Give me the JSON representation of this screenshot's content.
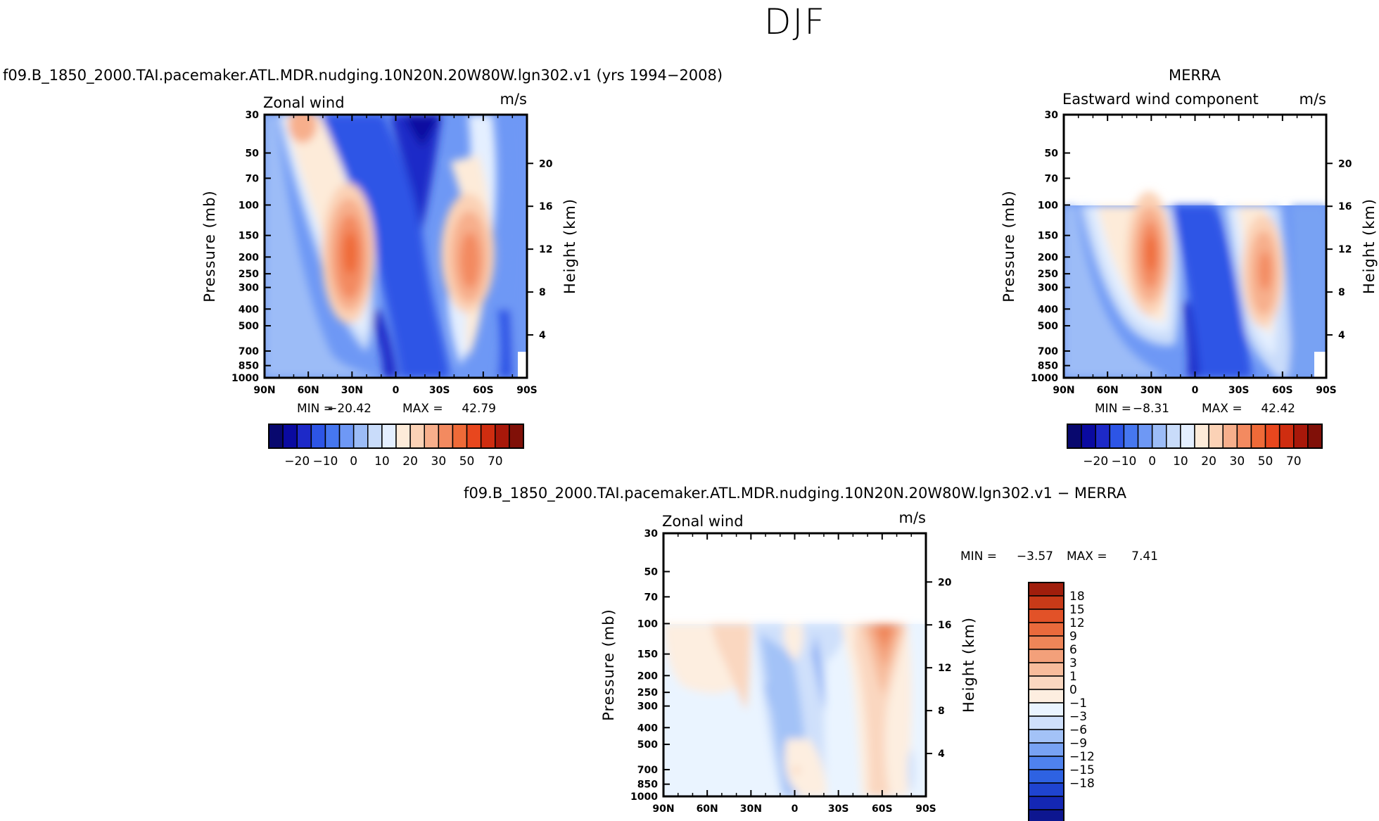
{
  "figure": {
    "title": "DJF",
    "top_caption": "f09.B_1850_2000.TAI.pacemaker.ATL.MDR.nudging.10N20N.20W80W.lgn302.v1 (yrs 1994−2008)",
    "merra_caption": "MERRA",
    "diff_caption": "f09.B_1850_2000.TAI.pacemaker.ATL.MDR.nudging.10N20N.20W80W.lgn302.v1 − MERRA"
  },
  "colors": {
    "wind_palette": [
      "#08086e",
      "#0a0aa0",
      "#1d29c8",
      "#2d55e6",
      "#4677f0",
      "#6e98f5",
      "#9cbcf7",
      "#c9dcfa",
      "#e4efff",
      "#fdebd9",
      "#fbd2b6",
      "#f7af8c",
      "#f38a60",
      "#ef6a38",
      "#e8471e",
      "#cf2d10",
      "#a8180a",
      "#801008"
    ],
    "diff_palette": [
      "#0d1690",
      "#1427b4",
      "#1f44d0",
      "#2e62e2",
      "#4f82ee",
      "#78a2f3",
      "#a3c2f7",
      "#cfe0fb",
      "#eaf4ff",
      "#fdeee0",
      "#fad7c0",
      "#f7bc9c",
      "#f3a07a",
      "#ef8558",
      "#ea6a3c",
      "#e25228",
      "#c83a18",
      "#a01e0c"
    ]
  },
  "axes": {
    "xtick_labels": [
      "90N",
      "60N",
      "30N",
      "0",
      "30S",
      "60S",
      "90S"
    ],
    "pressure_ticks": [
      "30",
      "50",
      "70",
      "100",
      "150",
      "200",
      "250",
      "300",
      "400",
      "500",
      "700",
      "850",
      "1000"
    ],
    "height_ticks": [
      "20",
      "16",
      "12",
      "8",
      "4"
    ],
    "ylabel": "Pressure (mb)",
    "ylabel_right": "Height (km)",
    "units": "m/s"
  },
  "colorbar_wind": {
    "labels": [
      "−20",
      "−10",
      "0",
      "10",
      "20",
      "30",
      "50",
      "70"
    ]
  },
  "colorbar_diff": {
    "labels": [
      "18",
      "15",
      "12",
      "9",
      "6",
      "3",
      "1",
      "0",
      "−1",
      "−3",
      "−6",
      "−9",
      "−12",
      "−15",
      "−18"
    ]
  },
  "chart_data": [
    {
      "type": "heatmap",
      "title": "Zonal wind",
      "xlabel": "",
      "ylabel": "Pressure (mb)",
      "ylabel_right": "Height (km)",
      "units": "m/s",
      "min_label": "MIN =",
      "max_label": "MAX =",
      "min": "−20.42",
      "max": "42.79",
      "min_value": -20.42,
      "max_value": 42.79,
      "x_range": [
        90,
        -90
      ],
      "y_range_mb": [
        1000,
        30
      ],
      "jets": [
        {
          "lat": 30,
          "p_mb": 200,
          "peak_ms": 42.8
        },
        {
          "lat": -50,
          "p_mb": 200,
          "peak_ms": 35
        }
      ]
    },
    {
      "type": "heatmap",
      "title": "Eastward wind component",
      "xlabel": "",
      "ylabel": "Pressure (mb)",
      "ylabel_right": "Height (km)",
      "units": "m/s",
      "min_label": "MIN =",
      "max_label": "MAX =",
      "min": "−8.31",
      "max": "42.42",
      "min_value": -8.31,
      "max_value": 42.42,
      "x_range": [
        90,
        -90
      ],
      "y_range_mb": [
        1000,
        100
      ],
      "jets": [
        {
          "lat": 30,
          "p_mb": 200,
          "peak_ms": 42.4
        },
        {
          "lat": -48,
          "p_mb": 250,
          "peak_ms": 30
        }
      ]
    },
    {
      "type": "heatmap",
      "title": "Zonal wind",
      "xlabel": "",
      "ylabel": "Pressure (mb)",
      "ylabel_right": "Height (km)",
      "units": "m/s",
      "min_label": "MIN =",
      "max_label": "MAX =",
      "min": "−3.57",
      "max": "7.41",
      "min_value": -3.57,
      "max_value": 7.41,
      "x_range": [
        90,
        -90
      ],
      "y_range_mb": [
        1000,
        100
      ]
    }
  ]
}
